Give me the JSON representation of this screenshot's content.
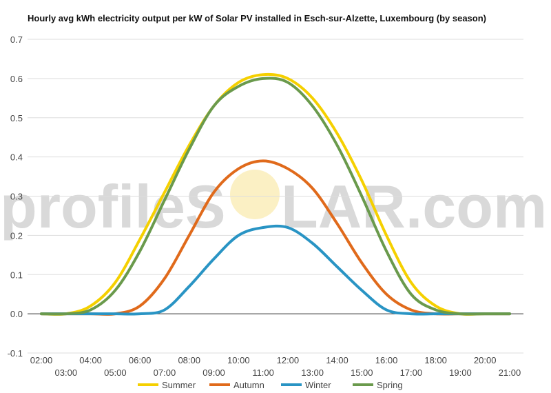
{
  "title": "Hourly avg kWh electricity output per kW of Solar PV installed in Esch-sur-Alzette, Luxembourg (by season)",
  "watermark": {
    "left": "profileS",
    "right": "LAR.com"
  },
  "chart_data": {
    "type": "line",
    "title": "Hourly avg kWh electricity output per kW of Solar PV installed in Esch-sur-Alzette, Luxembourg (by season)",
    "ylim": [
      -0.1,
      0.7
    ],
    "yticks": [
      "-0.1",
      "0.0",
      "0.1",
      "0.2",
      "0.3",
      "0.4",
      "0.5",
      "0.6",
      "0.7"
    ],
    "x": [
      "02:00",
      "03:00",
      "04:00",
      "05:00",
      "06:00",
      "07:00",
      "08:00",
      "09:00",
      "10:00",
      "11:00",
      "12:00",
      "13:00",
      "14:00",
      "15:00",
      "16:00",
      "17:00",
      "18:00",
      "19:00",
      "20:00",
      "21:00"
    ],
    "grid": true,
    "legend_position": "bottom",
    "series": [
      {
        "name": "Summer",
        "color": "#f5d000",
        "values": [
          0.0,
          0.0,
          0.02,
          0.08,
          0.19,
          0.31,
          0.43,
          0.53,
          0.59,
          0.61,
          0.6,
          0.55,
          0.46,
          0.34,
          0.2,
          0.08,
          0.02,
          0.0,
          0.0,
          0.0
        ]
      },
      {
        "name": "Autumn",
        "color": "#e06a1b",
        "values": [
          0.0,
          0.0,
          0.0,
          0.0,
          0.02,
          0.09,
          0.2,
          0.31,
          0.37,
          0.39,
          0.37,
          0.32,
          0.23,
          0.13,
          0.05,
          0.01,
          0.0,
          0.0,
          0.0,
          0.0
        ]
      },
      {
        "name": "Winter",
        "color": "#2994c4",
        "values": [
          0.0,
          0.0,
          0.0,
          0.0,
          0.0,
          0.01,
          0.07,
          0.14,
          0.2,
          0.22,
          0.22,
          0.18,
          0.12,
          0.06,
          0.01,
          0.0,
          0.0,
          0.0,
          0.0,
          0.0
        ]
      },
      {
        "name": "Spring",
        "color": "#6a9a4c",
        "values": [
          0.0,
          0.0,
          0.01,
          0.06,
          0.16,
          0.29,
          0.42,
          0.53,
          0.58,
          0.6,
          0.59,
          0.53,
          0.43,
          0.3,
          0.16,
          0.05,
          0.01,
          0.0,
          0.0,
          0.0
        ]
      }
    ]
  }
}
